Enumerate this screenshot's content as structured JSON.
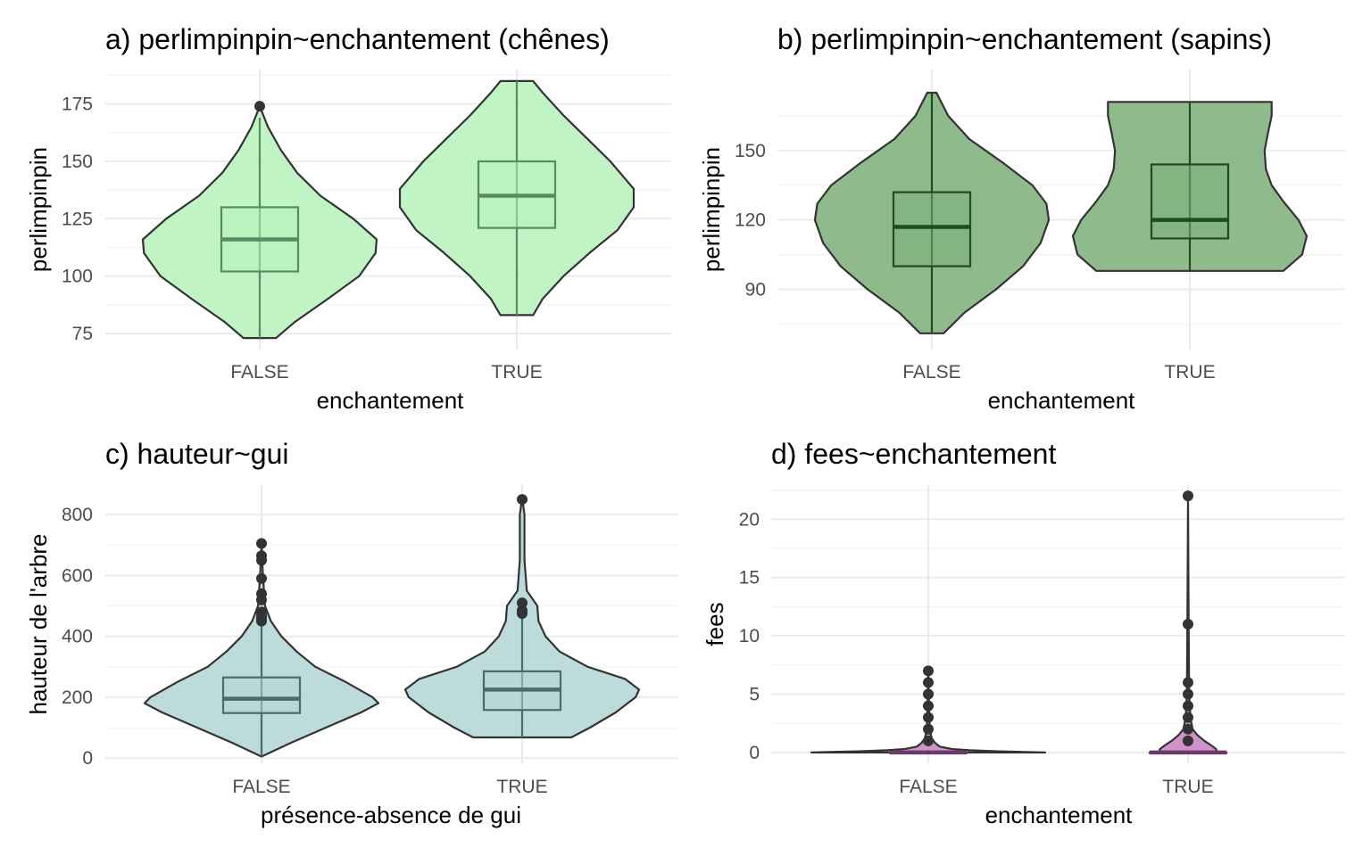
{
  "chart_data": [
    {
      "type": "violin",
      "title": "a) perlimpinpin~enchantement (chênes)",
      "xlabel": "enchantement",
      "ylabel": "perlimpinpin",
      "categories": [
        "FALSE",
        "TRUE"
      ],
      "ylim": [
        68,
        190
      ],
      "yticks": [
        75,
        100,
        125,
        150,
        175
      ],
      "colors": {
        "fill": "#b6f2ba",
        "edge": "#333333",
        "box": "#5a8a63"
      },
      "groups": [
        {
          "category": "FALSE",
          "min": 73,
          "max": 174,
          "box": {
            "lower_whisker": 73,
            "q1": 102,
            "median": 116,
            "q3": 130,
            "upper_whisker": 169
          },
          "outliers": [
            174
          ],
          "density": [
            [
              73,
              0.14
            ],
            [
              80,
              0.3
            ],
            [
              90,
              0.58
            ],
            [
              100,
              0.85
            ],
            [
              110,
              0.99
            ],
            [
              116,
              1.0
            ],
            [
              125,
              0.8
            ],
            [
              135,
              0.52
            ],
            [
              145,
              0.32
            ],
            [
              155,
              0.18
            ],
            [
              165,
              0.07
            ],
            [
              174,
              0.0
            ]
          ]
        },
        {
          "category": "TRUE",
          "min": 83,
          "max": 185,
          "box": {
            "lower_whisker": 83,
            "q1": 121,
            "median": 135,
            "q3": 150,
            "upper_whisker": 185
          },
          "outliers": [],
          "density": [
            [
              83,
              0.14
            ],
            [
              90,
              0.22
            ],
            [
              100,
              0.4
            ],
            [
              110,
              0.62
            ],
            [
              120,
              0.86
            ],
            [
              130,
              1.0
            ],
            [
              138,
              1.0
            ],
            [
              150,
              0.8
            ],
            [
              160,
              0.6
            ],
            [
              170,
              0.4
            ],
            [
              180,
              0.22
            ],
            [
              185,
              0.14
            ]
          ]
        }
      ]
    },
    {
      "type": "violin",
      "title": "b) perlimpinpin~enchantement (sapins)",
      "xlabel": "enchantement",
      "ylabel": "perlimpinpin",
      "categories": [
        "FALSE",
        "TRUE"
      ],
      "ylim": [
        64,
        185
      ],
      "yticks": [
        90,
        120,
        150
      ],
      "colors": {
        "fill": "#7baf78",
        "edge": "#333333",
        "box": "#1e4d1e"
      },
      "groups": [
        {
          "category": "FALSE",
          "min": 71,
          "max": 175,
          "box": {
            "lower_whisker": 71,
            "q1": 100,
            "median": 117,
            "q3": 132,
            "upper_whisker": 175
          },
          "outliers": [],
          "density": [
            [
              71,
              0.1
            ],
            [
              80,
              0.28
            ],
            [
              90,
              0.55
            ],
            [
              100,
              0.78
            ],
            [
              110,
              0.93
            ],
            [
              120,
              1.0
            ],
            [
              127,
              0.98
            ],
            [
              135,
              0.86
            ],
            [
              145,
              0.6
            ],
            [
              155,
              0.32
            ],
            [
              165,
              0.14
            ],
            [
              175,
              0.04
            ]
          ]
        },
        {
          "category": "TRUE",
          "min": 98,
          "max": 171,
          "box": {
            "lower_whisker": 98,
            "q1": 112,
            "median": 120,
            "q3": 144,
            "upper_whisker": 171
          },
          "outliers": [],
          "density": [
            [
              98,
              0.8
            ],
            [
              105,
              0.96
            ],
            [
              113,
              1.0
            ],
            [
              120,
              0.93
            ],
            [
              128,
              0.8
            ],
            [
              135,
              0.7
            ],
            [
              142,
              0.65
            ],
            [
              150,
              0.64
            ],
            [
              158,
              0.67
            ],
            [
              165,
              0.7
            ],
            [
              171,
              0.7
            ]
          ]
        }
      ]
    },
    {
      "type": "violin",
      "title": "c) hauteur~gui",
      "xlabel": "présence-absence de gui",
      "ylabel": "hauteur de l'arbre",
      "categories": [
        "FALSE",
        "TRUE"
      ],
      "ylim": [
        -20,
        900
      ],
      "yticks": [
        0,
        200,
        400,
        600,
        800
      ],
      "colors": {
        "fill": "#b3d5d6",
        "edge": "#333333",
        "box": "#4a6b6b"
      },
      "groups": [
        {
          "category": "FALSE",
          "min": 5,
          "max": 705,
          "box": {
            "lower_whisker": 5,
            "q1": 148,
            "median": 195,
            "q3": 265,
            "upper_whisker": 440
          },
          "outliers": [
            450,
            460,
            470,
            480,
            520,
            540,
            590,
            650,
            665,
            705
          ],
          "density": [
            [
              5,
              0.0
            ],
            [
              50,
              0.25
            ],
            [
              100,
              0.55
            ],
            [
              150,
              0.85
            ],
            [
              180,
              1.0
            ],
            [
              200,
              0.95
            ],
            [
              250,
              0.72
            ],
            [
              300,
              0.46
            ],
            [
              350,
              0.3
            ],
            [
              400,
              0.17
            ],
            [
              450,
              0.08
            ],
            [
              500,
              0.03
            ],
            [
              600,
              0.012
            ],
            [
              705,
              0.0
            ]
          ]
        },
        {
          "category": "TRUE",
          "min": 68,
          "max": 855,
          "box": {
            "lower_whisker": 68,
            "q1": 158,
            "median": 225,
            "q3": 285,
            "upper_whisker": 465
          },
          "outliers": [
            475,
            485,
            510,
            850
          ],
          "density": [
            [
              68,
              0.42
            ],
            [
              100,
              0.58
            ],
            [
              150,
              0.8
            ],
            [
              200,
              0.97
            ],
            [
              225,
              1.0
            ],
            [
              260,
              0.88
            ],
            [
              300,
              0.56
            ],
            [
              350,
              0.32
            ],
            [
              400,
              0.2
            ],
            [
              450,
              0.14
            ],
            [
              500,
              0.13
            ],
            [
              550,
              0.04
            ],
            [
              650,
              0.02
            ],
            [
              800,
              0.02
            ],
            [
              855,
              0.0
            ]
          ]
        }
      ]
    },
    {
      "type": "violin",
      "title": "d) fees~enchantement",
      "xlabel": "enchantement",
      "ylabel": "fees",
      "categories": [
        "FALSE",
        "TRUE"
      ],
      "ylim": [
        -1,
        23
      ],
      "yticks": [
        0,
        5,
        10,
        15,
        20
      ],
      "colors": {
        "fill": "#c77fc0",
        "edge": "#333333",
        "box": "#6a3a6a"
      },
      "groups": [
        {
          "category": "FALSE",
          "min": 0,
          "max": 7,
          "box": {
            "lower_whisker": 0,
            "q1": 0,
            "median": 0,
            "q3": 0,
            "upper_whisker": 0
          },
          "outliers": [
            1,
            2,
            3,
            4,
            5,
            6,
            7
          ],
          "density": [
            [
              0,
              1.0
            ],
            [
              0.1,
              0.6
            ],
            [
              0.2,
              0.35
            ],
            [
              0.3,
              0.2
            ],
            [
              0.5,
              0.1
            ],
            [
              0.8,
              0.06
            ],
            [
              1.2,
              0.03
            ],
            [
              2,
              0.012
            ],
            [
              4,
              0.006
            ],
            [
              7,
              0.0
            ]
          ]
        },
        {
          "category": "TRUE",
          "min": 0,
          "max": 22,
          "box": {
            "lower_whisker": 0,
            "q1": 0,
            "median": 0,
            "q3": 0,
            "upper_whisker": 0
          },
          "outliers": [
            1,
            2,
            3,
            4,
            5,
            6,
            11,
            22
          ],
          "density": [
            [
              0,
              0.25
            ],
            [
              0.3,
              0.24
            ],
            [
              0.6,
              0.2
            ],
            [
              1,
              0.14
            ],
            [
              1.5,
              0.08
            ],
            [
              2,
              0.04
            ],
            [
              3,
              0.02
            ],
            [
              5,
              0.01
            ],
            [
              11,
              0.005
            ],
            [
              22,
              0.0
            ]
          ]
        }
      ]
    }
  ]
}
